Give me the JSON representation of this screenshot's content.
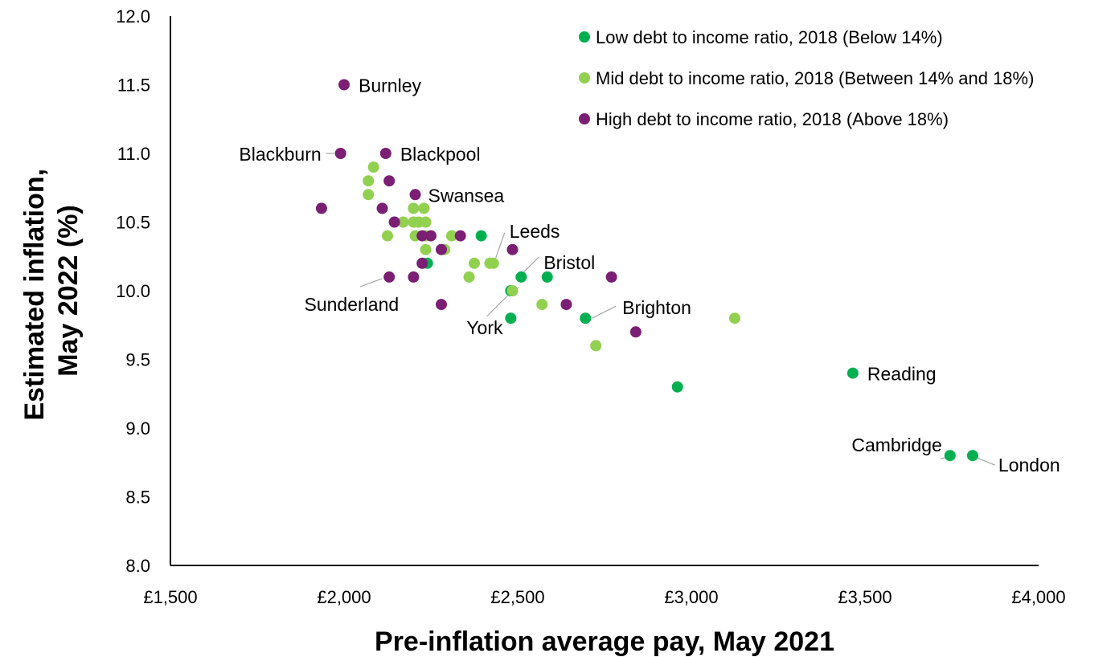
{
  "chart_data": {
    "type": "scatter",
    "title": "",
    "xlabel": "Pre-inflation average pay, May 2021",
    "ylabel_lines": [
      "Estimated inflation,",
      "May 2022 (%)"
    ],
    "xlim": [
      1500,
      4000
    ],
    "ylim": [
      8.0,
      12.0
    ],
    "x_ticks": [
      1500,
      2000,
      2500,
      3000,
      3500,
      4000
    ],
    "x_tick_labels": [
      "£1,500",
      "£2,000",
      "£2,500",
      "£3,000",
      "£3,500",
      "£4,000"
    ],
    "y_ticks": [
      8.0,
      8.5,
      9.0,
      9.5,
      10.0,
      10.5,
      11.0,
      11.5,
      12.0
    ],
    "y_tick_labels": [
      "8.0",
      "8.5",
      "9.0",
      "9.5",
      "10.0",
      "10.5",
      "11.0",
      "11.5",
      "12.0"
    ],
    "grid": false,
    "legend_position": "top-right",
    "series": [
      {
        "key": "low",
        "name": "Low debt to income ratio, 2018 (Below 14%)",
        "color": "#00b050",
        "points": [
          {
            "x": 2240,
            "y": 10.2
          },
          {
            "x": 2395,
            "y": 10.4
          },
          {
            "x": 2480,
            "y": 10.0
          },
          {
            "x": 2510,
            "y": 10.1,
            "label": "Bristol"
          },
          {
            "x": 2585,
            "y": 10.1
          },
          {
            "x": 2480,
            "y": 9.8
          },
          {
            "x": 2695,
            "y": 9.8,
            "label": "Brighton"
          },
          {
            "x": 2960,
            "y": 9.3
          },
          {
            "x": 3465,
            "y": 9.4,
            "label": "Reading"
          },
          {
            "x": 3745,
            "y": 8.8,
            "label": "Cambridge"
          },
          {
            "x": 3810,
            "y": 8.8,
            "label": "London"
          }
        ]
      },
      {
        "key": "mid",
        "name": "Mid debt to income ratio, 2018 (Between 14% and 18%)",
        "color": "#92d050",
        "points": [
          {
            "x": 2085,
            "y": 10.9
          },
          {
            "x": 2070,
            "y": 10.8
          },
          {
            "x": 2070,
            "y": 10.7
          },
          {
            "x": 2125,
            "y": 10.4
          },
          {
            "x": 2170,
            "y": 10.5
          },
          {
            "x": 2200,
            "y": 10.6
          },
          {
            "x": 2230,
            "y": 10.6
          },
          {
            "x": 2200,
            "y": 10.5
          },
          {
            "x": 2215,
            "y": 10.5
          },
          {
            "x": 2235,
            "y": 10.5
          },
          {
            "x": 2205,
            "y": 10.4
          },
          {
            "x": 2235,
            "y": 10.4
          },
          {
            "x": 2310,
            "y": 10.4
          },
          {
            "x": 2235,
            "y": 10.3
          },
          {
            "x": 2290,
            "y": 10.3
          },
          {
            "x": 2375,
            "y": 10.2
          },
          {
            "x": 2420,
            "y": 10.2
          },
          {
            "x": 2430,
            "y": 10.2,
            "label": "Leeds"
          },
          {
            "x": 2360,
            "y": 10.1
          },
          {
            "x": 2485,
            "y": 10.0,
            "label": "York"
          },
          {
            "x": 2570,
            "y": 9.9
          },
          {
            "x": 2725,
            "y": 9.6
          },
          {
            "x": 3125,
            "y": 9.8
          }
        ]
      },
      {
        "key": "high",
        "name": "High debt to income ratio, 2018 (Above 18%)",
        "color": "#7b1f74",
        "points": [
          {
            "x": 2000,
            "y": 11.5,
            "label": "Burnley"
          },
          {
            "x": 1990,
            "y": 11.0,
            "label": "Blackburn"
          },
          {
            "x": 2120,
            "y": 11.0,
            "label": "Blackpool"
          },
          {
            "x": 2130,
            "y": 10.8
          },
          {
            "x": 2205,
            "y": 10.7,
            "label": "Swansea"
          },
          {
            "x": 1935,
            "y": 10.6
          },
          {
            "x": 2110,
            "y": 10.6
          },
          {
            "x": 2145,
            "y": 10.5
          },
          {
            "x": 2225,
            "y": 10.4
          },
          {
            "x": 2250,
            "y": 10.4
          },
          {
            "x": 2335,
            "y": 10.4
          },
          {
            "x": 2280,
            "y": 10.3
          },
          {
            "x": 2485,
            "y": 10.3
          },
          {
            "x": 2225,
            "y": 10.2
          },
          {
            "x": 2130,
            "y": 10.1,
            "label": "Sunderland"
          },
          {
            "x": 2200,
            "y": 10.1
          },
          {
            "x": 2770,
            "y": 10.1
          },
          {
            "x": 2280,
            "y": 9.9
          },
          {
            "x": 2640,
            "y": 9.9
          },
          {
            "x": 2840,
            "y": 9.7
          }
        ]
      }
    ]
  }
}
